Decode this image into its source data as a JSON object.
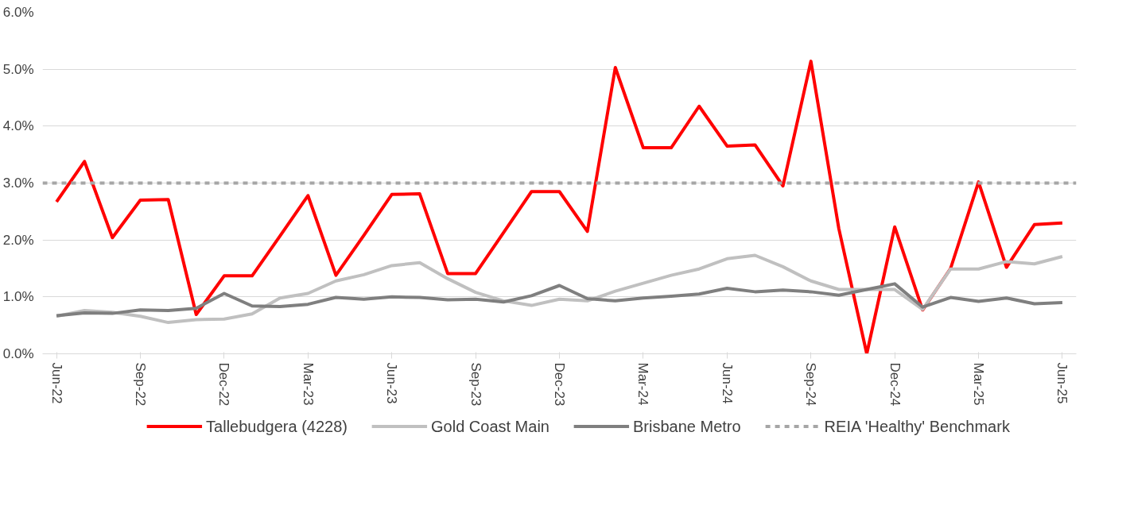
{
  "chart_data": {
    "type": "line",
    "categories": [
      "Jun-22",
      null,
      null,
      "Sep-22",
      null,
      null,
      "Dec-22",
      null,
      null,
      "Mar-23",
      null,
      null,
      "Jun-23",
      null,
      null,
      "Sep-23",
      null,
      null,
      "Dec-23",
      null,
      null,
      "Mar-24",
      null,
      null,
      "Jun-24",
      null,
      null,
      "Sep-24",
      null,
      null,
      "Dec-24",
      null,
      null,
      "Mar-25",
      null,
      null,
      "Jun-25"
    ],
    "series": [
      {
        "name": "Tallebudgera (4228)",
        "color": "#ff0000",
        "values": [
          2.67,
          3.38,
          2.04,
          2.7,
          2.71,
          0.69,
          1.37,
          1.37,
          2.07,
          2.78,
          1.38,
          2.08,
          2.8,
          2.81,
          1.41,
          1.41,
          2.13,
          2.85,
          2.85,
          2.15,
          5.03,
          3.62,
          3.62,
          4.35,
          3.65,
          3.67,
          2.95,
          5.14,
          2.2,
          0.0,
          2.23,
          0.77,
          1.5,
          3.02,
          1.52,
          2.27,
          2.3
        ]
      },
      {
        "name": "Gold Coast Main",
        "color": "#c0c0c0",
        "values": [
          0.66,
          0.76,
          0.73,
          0.66,
          0.55,
          0.6,
          0.61,
          0.7,
          0.98,
          1.06,
          1.28,
          1.39,
          1.55,
          1.6,
          1.32,
          1.08,
          0.93,
          0.85,
          0.96,
          0.93,
          1.1,
          1.24,
          1.38,
          1.49,
          1.67,
          1.73,
          1.53,
          1.28,
          1.13,
          1.13,
          1.13,
          0.78,
          1.49,
          1.49,
          1.62,
          1.58,
          1.71
        ]
      },
      {
        "name": "Brisbane Metro",
        "color": "#7f7f7f",
        "values": [
          0.67,
          0.72,
          0.71,
          0.77,
          0.76,
          0.8,
          1.06,
          0.84,
          0.83,
          0.87,
          0.99,
          0.96,
          1.0,
          0.99,
          0.95,
          0.96,
          0.91,
          1.02,
          1.2,
          0.97,
          0.93,
          0.98,
          1.01,
          1.05,
          1.15,
          1.09,
          1.12,
          1.09,
          1.03,
          1.13,
          1.23,
          0.82,
          0.99,
          0.92,
          0.98,
          0.88,
          0.9
        ]
      }
    ],
    "ref_lines": [
      {
        "axis": "y",
        "value": 3,
        "label": "REIA 'Healthy' Benchmark",
        "color": "#a6a6a6",
        "line_style": "dashed"
      }
    ],
    "ylim": [
      0,
      6
    ],
    "yticks": [
      {
        "value": 0,
        "label": "0.0%"
      },
      {
        "value": 1,
        "label": "1.0%"
      },
      {
        "value": 2,
        "label": "2.0%"
      },
      {
        "value": 3,
        "label": "3.0%"
      },
      {
        "value": 4,
        "label": "4.0%"
      },
      {
        "value": 5,
        "label": "5.0%"
      },
      {
        "value": 6,
        "label": "6.0%"
      }
    ],
    "grid": "y",
    "legend": "bottom",
    "marker": "none",
    "line_style": "solid"
  }
}
